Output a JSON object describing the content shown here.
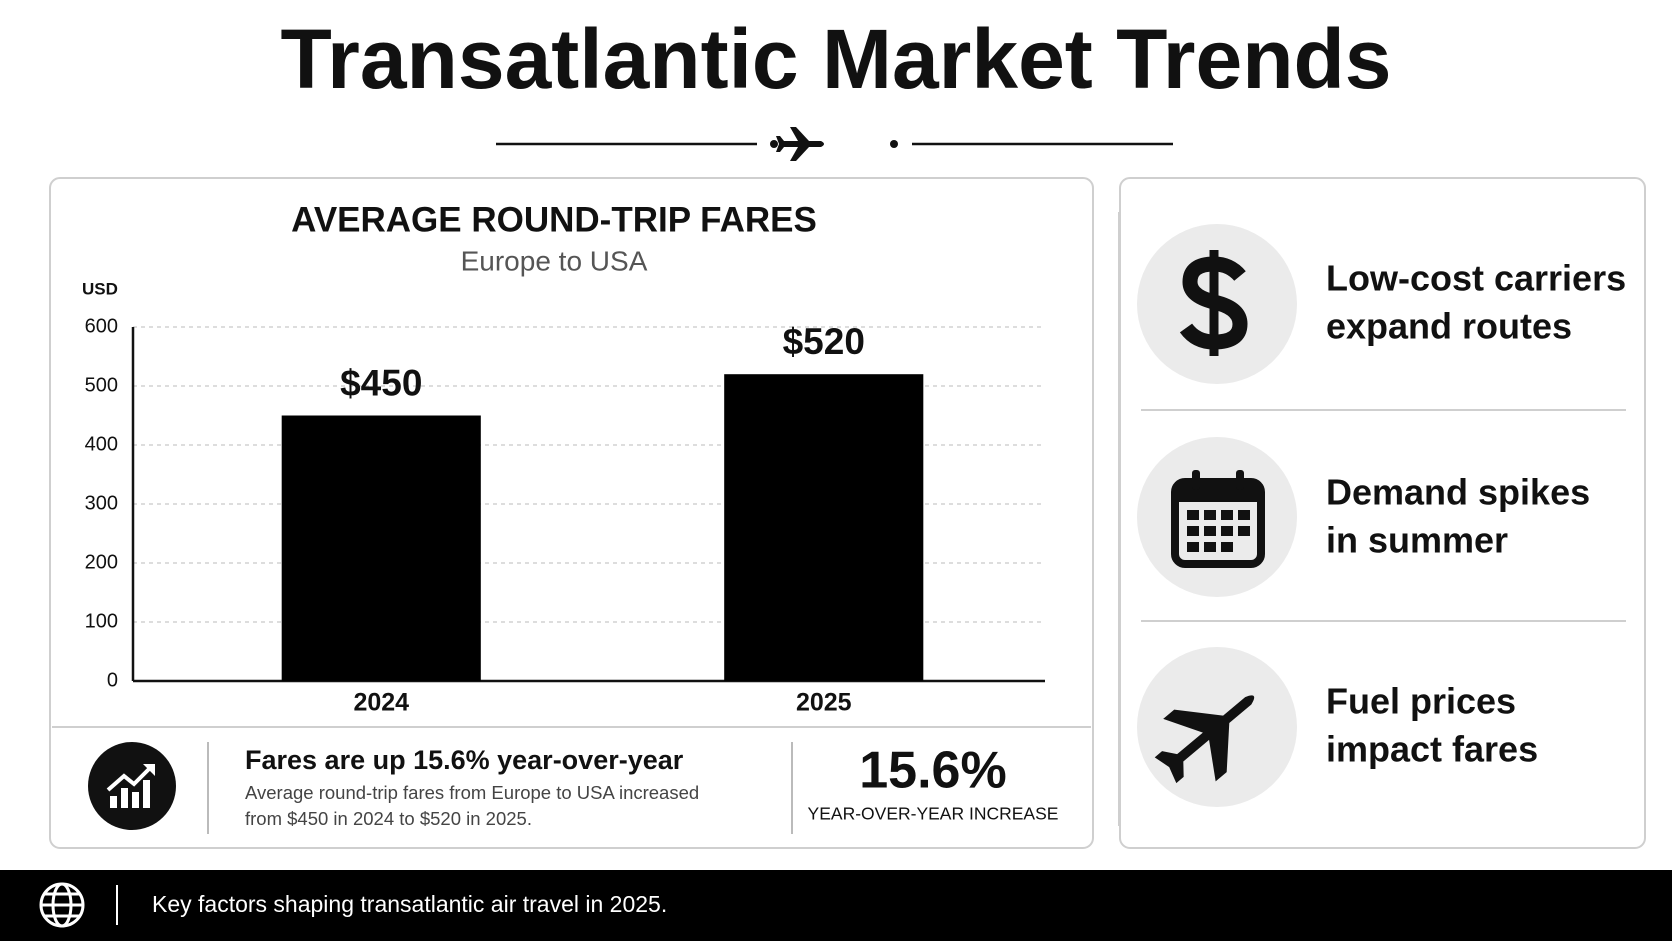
{
  "title": "Transatlantic Market Trends",
  "chart_data": {
    "type": "bar",
    "title": "AVERAGE ROUND-TRIP FARES",
    "subtitle": "Europe to USA",
    "y_label": "USD",
    "categories": [
      "2024",
      "2025"
    ],
    "values": [
      450,
      520
    ],
    "value_labels": [
      "$450",
      "$520"
    ],
    "color": "#000000",
    "ylim": [
      0,
      600
    ],
    "yticks": [
      0,
      100,
      200,
      300,
      400,
      500,
      600
    ],
    "grid": true
  },
  "summary": {
    "heading": "Fares are up 15.6% year-over-year",
    "text_lines": [
      "Average round-trip fares from Europe to USA increased",
      "from $450 in 2024 to $520 in 2025."
    ],
    "stat": "15.6%",
    "stat_label": "YEAR-OVER-YEAR INCREASE"
  },
  "factors": [
    {
      "lines": [
        "Low-cost carriers",
        "expand routes"
      ]
    },
    {
      "lines": [
        "Demand spikes",
        "in summer"
      ]
    },
    {
      "lines": [
        "Fuel prices",
        "impact fares"
      ]
    }
  ],
  "footer": "Key factors shaping transatlantic air travel in 2025."
}
